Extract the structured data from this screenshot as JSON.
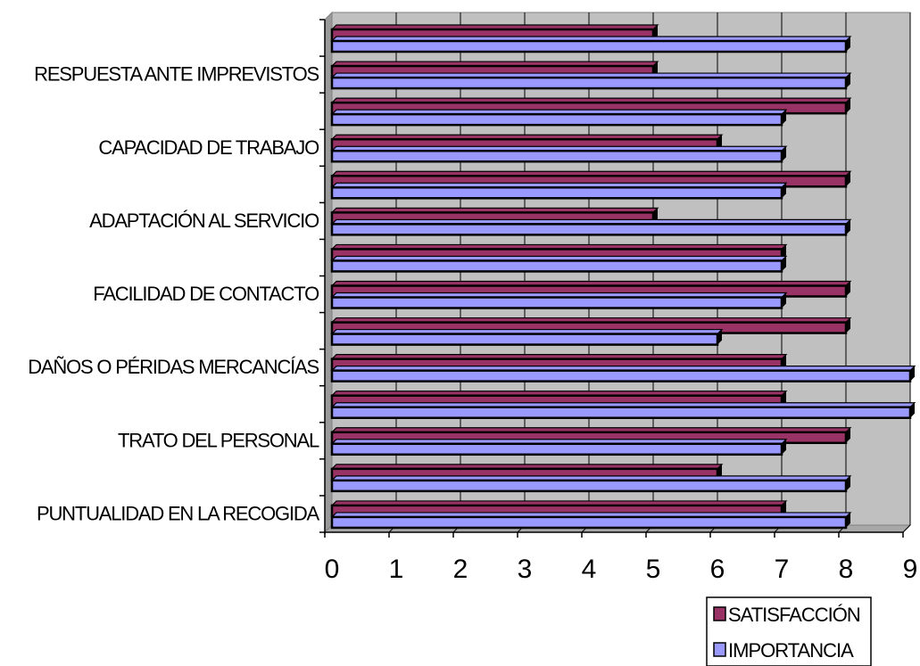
{
  "chart_data": {
    "type": "bar",
    "orientation": "horizontal",
    "title": "",
    "xlabel": "",
    "ylabel": "",
    "xlim": [
      0,
      9
    ],
    "x_ticks": [
      "0",
      "1",
      "2",
      "3",
      "4",
      "5",
      "6",
      "7",
      "8",
      "9"
    ],
    "grid": true,
    "legend_position": "bottom-right",
    "categories": [
      "PUNTUALIDAD EN LA RECOGIDA",
      "",
      "TRATO DEL PERSONAL",
      "",
      "DAÑOS O PÉRIDAS MERCANCÍAS",
      "",
      "FACILIDAD DE CONTACTO",
      "",
      "ADAPTACIÓN AL SERVICIO",
      "",
      "CAPACIDAD DE TRABAJO",
      "",
      "RESPUESTA ANTE IMPREVISTOS",
      ""
    ],
    "series": [
      {
        "name": "SATISFACCIÓN",
        "color": "#993366",
        "values": [
          7,
          6,
          8,
          7,
          7,
          8,
          8,
          7,
          5,
          8,
          6,
          8,
          5,
          5
        ]
      },
      {
        "name": "IMPORTANCIA",
        "color": "#9999ff",
        "values": [
          8,
          8,
          7,
          9,
          9,
          6,
          7,
          7,
          8,
          7,
          7,
          7,
          8,
          8
        ]
      }
    ]
  }
}
